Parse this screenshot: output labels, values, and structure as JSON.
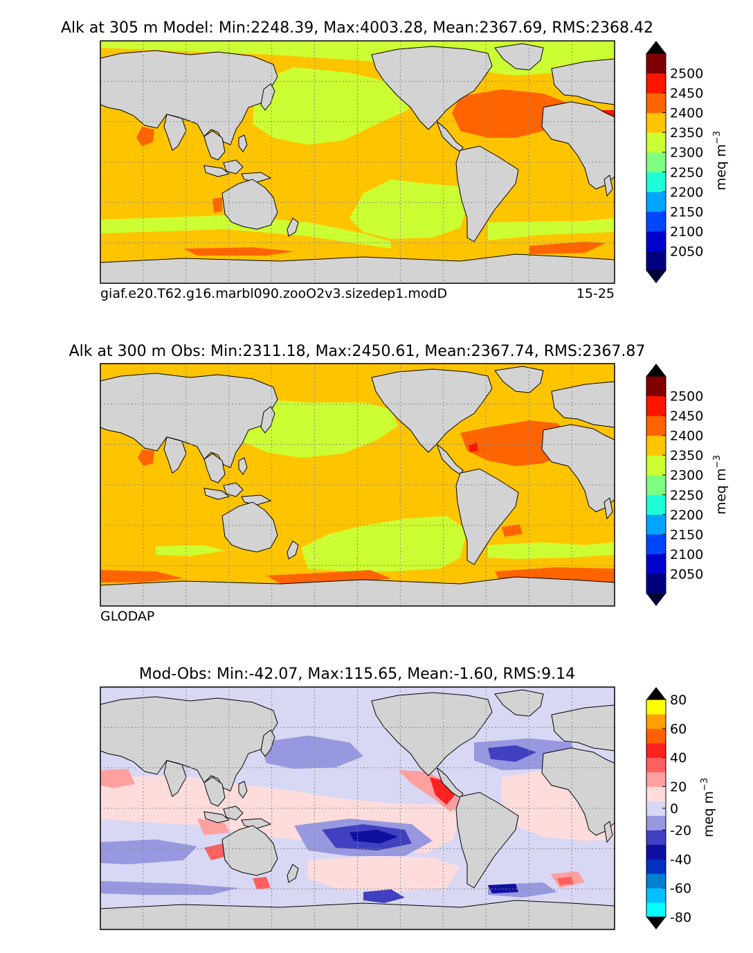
{
  "panels": [
    {
      "title": "Alk at 305 m Model: Min:2248.39, Max:4003.28, Mean:2367.69, RMS:2368.42",
      "caption_left": "giaf.e20.T62.g16.marbl090.zooO2v3.sizedep1.modD",
      "caption_right": "15-25",
      "colorbar": {
        "label": "meq m",
        "label_exp": "−3",
        "ticks": [
          "2050",
          "2100",
          "2150",
          "2200",
          "2250",
          "2300",
          "2350",
          "2400",
          "2450",
          "2500"
        ],
        "colors": [
          "#00007f",
          "#0000cd",
          "#0045ff",
          "#00a5ff",
          "#1effd9",
          "#7fff7f",
          "#ccff33",
          "#ffc400",
          "#ff6400",
          "#ff1400",
          "#7f0000"
        ],
        "under_color": "#000033",
        "over_color": "#000000"
      }
    },
    {
      "title": "Alk at 300 m Obs: Min:2311.18, Max:2450.61, Mean:2367.74, RMS:2367.87",
      "caption_left": "GLODAP",
      "caption_right": "",
      "colorbar": {
        "label": "meq m",
        "label_exp": "−3",
        "ticks": [
          "2050",
          "2100",
          "2150",
          "2200",
          "2250",
          "2300",
          "2350",
          "2400",
          "2450",
          "2500"
        ],
        "colors": [
          "#00007f",
          "#0000cd",
          "#0045ff",
          "#00a5ff",
          "#1effd9",
          "#7fff7f",
          "#ccff33",
          "#ffc400",
          "#ff6400",
          "#ff1400",
          "#7f0000"
        ],
        "under_color": "#000033",
        "over_color": "#000000"
      }
    },
    {
      "title": "Mod-Obs: Min:-42.07, Max:115.65, Mean:-1.60, RMS:9.14",
      "caption_left": "",
      "caption_right": "",
      "colorbar": {
        "label": "meq m",
        "label_exp": "−3",
        "ticks": [
          "-80",
          "-60",
          "-40",
          "-20",
          "0",
          "20",
          "40",
          "60",
          "80"
        ],
        "colors": [
          "#00ffff",
          "#00c0ff",
          "#0080d0",
          "#0030c0",
          "#1010a0",
          "#4040c0",
          "#9898e0",
          "#d8d8f4",
          "#ffdcdc",
          "#ffa0a0",
          "#ff6060",
          "#ff2020",
          "#ff6000",
          "#ffa000",
          "#ffff00"
        ],
        "tick_positions": [
          0,
          2,
          4,
          6,
          7.5,
          9,
          11,
          13,
          15
        ],
        "under_color": "#000000",
        "over_color": "#000000"
      }
    }
  ],
  "colors": {
    "land": "#d3d3d3",
    "frame": "#000000",
    "grid": "#888888"
  }
}
